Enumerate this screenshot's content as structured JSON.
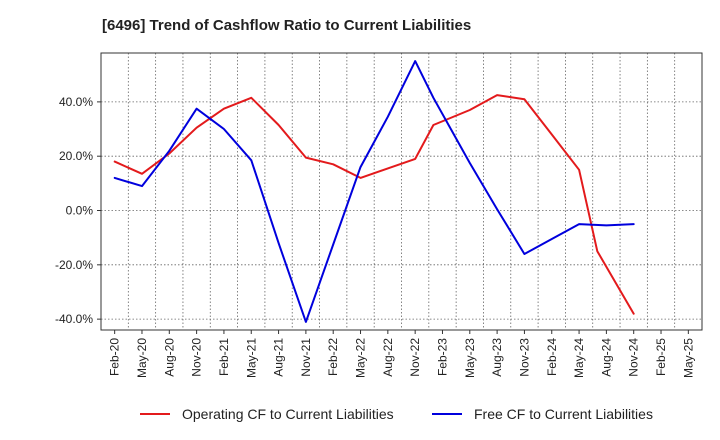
{
  "chart_data": {
    "type": "line",
    "title": "[6496]  Trend of Cashflow Ratio to Current Liabilities",
    "xlabel": "",
    "ylabel": "",
    "categories": [
      "Feb-20",
      "May-20",
      "Aug-20",
      "Nov-20",
      "Feb-21",
      "May-21",
      "Aug-21",
      "Nov-21",
      "Feb-22",
      "May-22",
      "Aug-22",
      "Nov-22",
      "Feb-23",
      "May-23",
      "Aug-23",
      "Nov-23",
      "Feb-24",
      "May-24",
      "Aug-24",
      "Nov-24",
      "Feb-25",
      "May-25"
    ],
    "ylim": [
      -44,
      58
    ],
    "yticks": [
      -40,
      -20,
      0,
      20,
      40
    ],
    "ytick_labels": [
      "-40.0%",
      "-20.0%",
      "0.0%",
      "20.0%",
      "40.0%"
    ],
    "grid": true,
    "legend": "bottom",
    "series": [
      {
        "name": "Operating CF to Current Liabilities",
        "color": "#e31a1c",
        "points": [
          [
            "Feb-20",
            18
          ],
          [
            "May-20",
            13.5
          ],
          [
            "Aug-20",
            21
          ],
          [
            "Nov-20",
            30.5
          ],
          [
            "Feb-21",
            37.5
          ],
          [
            "May-21",
            41.5
          ],
          [
            "Aug-21",
            31.5
          ],
          [
            "Nov-21",
            19.5
          ],
          [
            "Feb-22",
            17
          ],
          [
            "May-22",
            12
          ],
          [
            "Aug-22",
            15.5
          ],
          [
            "Nov-22",
            19
          ],
          [
            "Jan-23",
            31.5
          ],
          [
            "May-23",
            37
          ],
          [
            "Aug-23",
            42.5
          ],
          [
            "Nov-23",
            41
          ],
          [
            "Feb-24",
            28
          ],
          [
            "May-24",
            15
          ],
          [
            "Jul-24",
            -15
          ],
          [
            "Sep-24",
            -26.5
          ],
          [
            "Nov-24",
            -38
          ]
        ]
      },
      {
        "name": "Free CF to Current Liabilities",
        "color": "#0000dd",
        "points": [
          [
            "Feb-20",
            12
          ],
          [
            "May-20",
            9
          ],
          [
            "Aug-20",
            22
          ],
          [
            "Nov-20",
            37.5
          ],
          [
            "Feb-21",
            30
          ],
          [
            "May-21",
            18.5
          ],
          [
            "Aug-21",
            -12
          ],
          [
            "Nov-21",
            -41
          ],
          [
            "Feb-22",
            -12.5
          ],
          [
            "May-22",
            16
          ],
          [
            "Aug-22",
            34.5
          ],
          [
            "Nov-22",
            55
          ],
          [
            "Jan-23",
            41.5
          ],
          [
            "May-23",
            17.5
          ],
          [
            "Aug-23",
            0.5
          ],
          [
            "Nov-23",
            -16
          ],
          [
            "Feb-24",
            -10.5
          ],
          [
            "May-24",
            -5
          ],
          [
            "Aug-24",
            -5.5
          ],
          [
            "Nov-24",
            -5
          ]
        ]
      }
    ]
  }
}
